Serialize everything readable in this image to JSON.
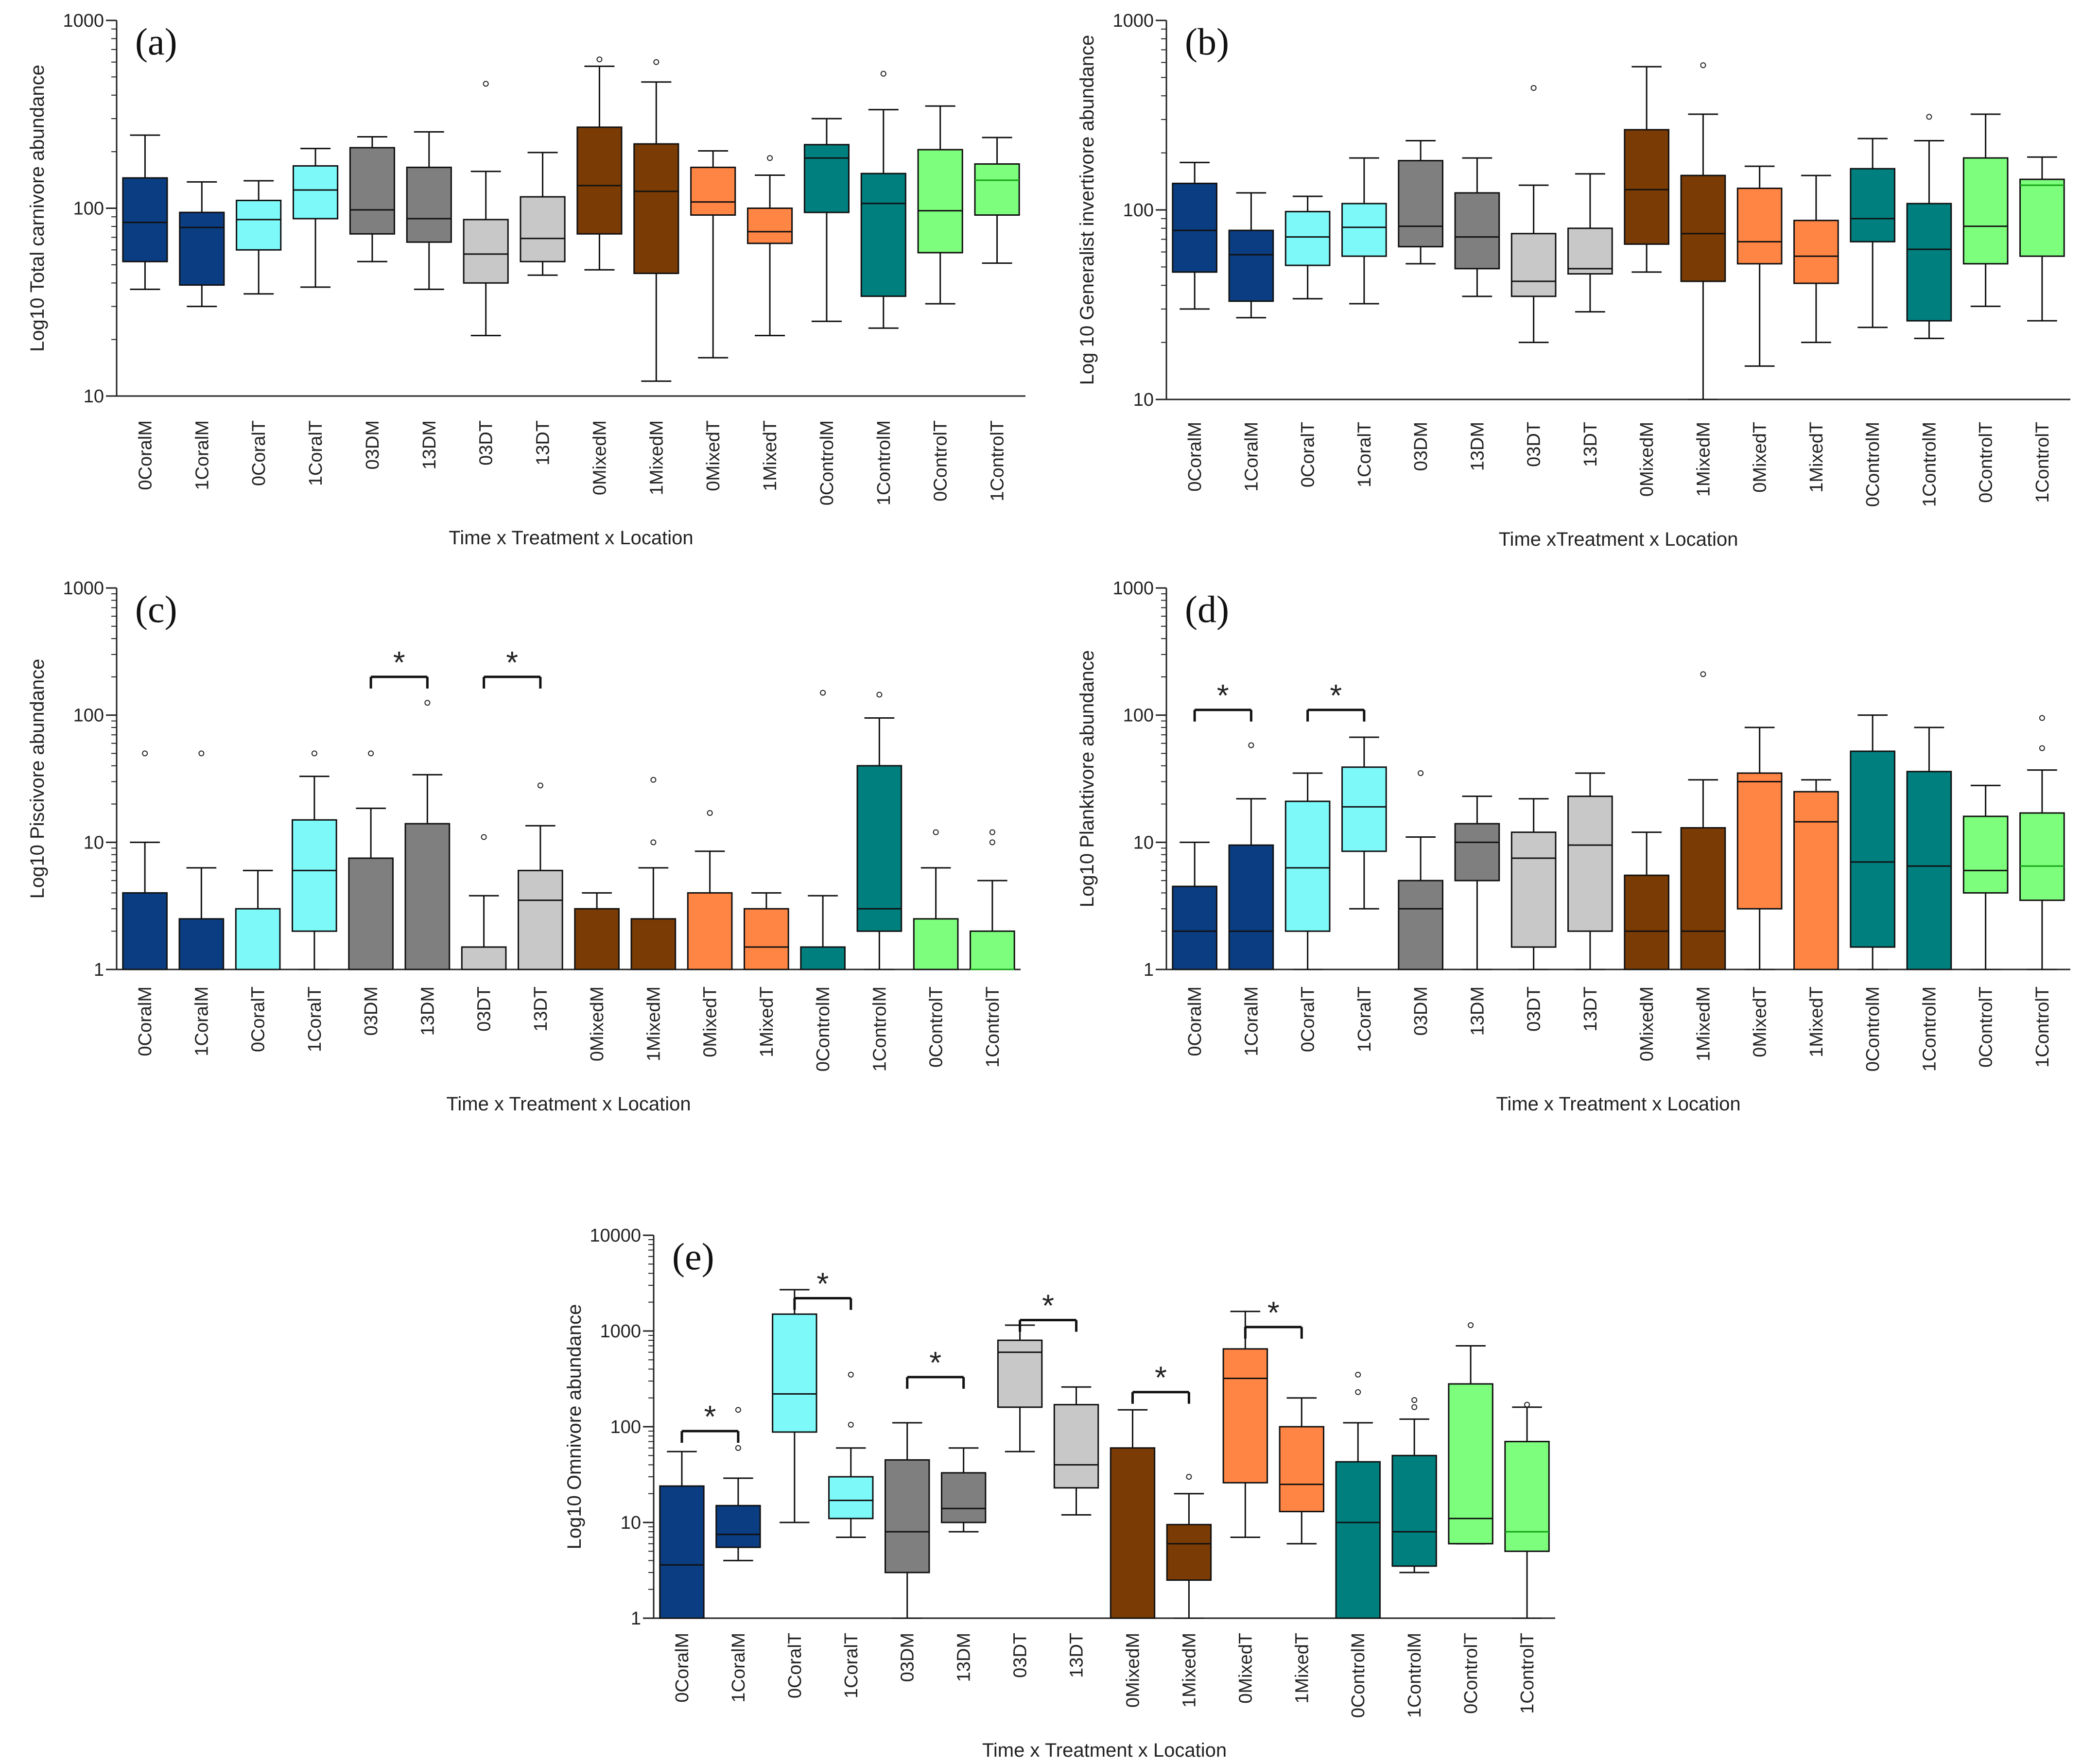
{
  "figure": {
    "categories": [
      "0CoralM",
      "1CoralM",
      "0CoralT",
      "1CoralT",
      "03DM",
      "13DM",
      "03DT",
      "13DT",
      "0MixedM",
      "1MixedM",
      "0MixedT",
      "1MixedT",
      "0ControlM",
      "1ControlM",
      "0ControlT",
      "1ControlT"
    ],
    "category_colors": [
      "#0b3d82",
      "#0b3d82",
      "#7df9fa",
      "#7df9fa",
      "#7f7f7f",
      "#7f7f7f",
      "#c8c8c8",
      "#c8c8c8",
      "#7a3b04",
      "#7a3b04",
      "#ff8544",
      "#ff8544",
      "#007f7f",
      "#007f7f",
      "#7dff7d",
      "#7dff7d"
    ],
    "median_colors": [
      "#111111",
      "#111111",
      "#111111",
      "#111111",
      "#111111",
      "#111111",
      "#111111",
      "#111111",
      "#111111",
      "#111111",
      "#111111",
      "#111111",
      "#111111",
      "#111111",
      "#111111",
      "#16a316"
    ]
  },
  "chart_data": [
    {
      "id": "a",
      "panel_label": "(a)",
      "type": "box",
      "ylabel": "Log10 Total carnivore abundance",
      "xlabel": "Time x Treatment x Location",
      "yscale": "log",
      "ylim": [
        10,
        1000
      ],
      "yticks": [
        {
          "v": 10,
          "label": "10"
        },
        {
          "v": 100,
          "label": "100"
        },
        {
          "v": 1000,
          "label": "1000"
        }
      ],
      "boxes": [
        {
          "min": 37,
          "q1": 52,
          "med": 84,
          "q3": 145,
          "max": 245,
          "out": []
        },
        {
          "min": 30,
          "q1": 39,
          "med": 79,
          "q3": 95,
          "max": 138,
          "out": []
        },
        {
          "min": 35,
          "q1": 60,
          "med": 87,
          "q3": 110,
          "max": 140,
          "out": []
        },
        {
          "min": 38,
          "q1": 88,
          "med": 125,
          "q3": 168,
          "max": 208,
          "out": []
        },
        {
          "min": 52,
          "q1": 73,
          "med": 98,
          "q3": 210,
          "max": 240,
          "out": []
        },
        {
          "min": 37,
          "q1": 66,
          "med": 88,
          "q3": 165,
          "max": 255,
          "out": []
        },
        {
          "min": 21,
          "q1": 40,
          "med": 57,
          "q3": 87,
          "max": 157,
          "out": [
            460
          ]
        },
        {
          "min": 44,
          "q1": 52,
          "med": 69,
          "q3": 115,
          "max": 198,
          "out": []
        },
        {
          "min": 47,
          "q1": 73,
          "med": 132,
          "q3": 270,
          "max": 570,
          "out": [
            620
          ]
        },
        {
          "min": 12,
          "q1": 45,
          "med": 123,
          "q3": 220,
          "max": 470,
          "out": [
            600
          ]
        },
        {
          "min": 16,
          "q1": 92,
          "med": 108,
          "q3": 165,
          "max": 202,
          "out": []
        },
        {
          "min": 21,
          "q1": 65,
          "med": 75,
          "q3": 100,
          "max": 150,
          "out": [
            185
          ]
        },
        {
          "min": 25,
          "q1": 95,
          "med": 185,
          "q3": 218,
          "max": 300,
          "out": []
        },
        {
          "min": 23,
          "q1": 34,
          "med": 106,
          "q3": 153,
          "max": 335,
          "out": [
            520
          ]
        },
        {
          "min": 31,
          "q1": 58,
          "med": 97,
          "q3": 205,
          "max": 350,
          "out": []
        },
        {
          "min": 51,
          "q1": 92,
          "med": 141,
          "q3": 172,
          "max": 238,
          "out": []
        }
      ],
      "significance": []
    },
    {
      "id": "b",
      "panel_label": "(b)",
      "type": "box",
      "ylabel": "Log 10 Generalist invertivore abundance",
      "xlabel": "Time xTreatment x Location",
      "yscale": "log",
      "ylim": [
        10,
        1000
      ],
      "yticks": [
        {
          "v": 10,
          "label": "10"
        },
        {
          "v": 100,
          "label": "100"
        },
        {
          "v": 1000,
          "label": "1000"
        }
      ],
      "boxes": [
        {
          "min": 30,
          "q1": 47,
          "med": 78,
          "q3": 138,
          "max": 178,
          "out": []
        },
        {
          "min": 27,
          "q1": 33,
          "med": 58,
          "q3": 78,
          "max": 123,
          "out": []
        },
        {
          "min": 34,
          "q1": 51,
          "med": 72,
          "q3": 98,
          "max": 118,
          "out": []
        },
        {
          "min": 32,
          "q1": 57,
          "med": 81,
          "q3": 108,
          "max": 188,
          "out": []
        },
        {
          "min": 52,
          "q1": 64,
          "med": 82,
          "q3": 182,
          "max": 232,
          "out": []
        },
        {
          "min": 35,
          "q1": 49,
          "med": 72,
          "q3": 123,
          "max": 188,
          "out": []
        },
        {
          "min": 20,
          "q1": 35,
          "med": 42,
          "q3": 75,
          "max": 135,
          "out": [
            440
          ]
        },
        {
          "min": 29,
          "q1": 46,
          "med": 49,
          "q3": 80,
          "max": 155,
          "out": []
        },
        {
          "min": 47,
          "q1": 66,
          "med": 128,
          "q3": 265,
          "max": 570,
          "out": []
        },
        {
          "min": 10,
          "q1": 42,
          "med": 75,
          "q3": 152,
          "max": 320,
          "out": [
            580
          ]
        },
        {
          "min": 15,
          "q1": 52,
          "med": 68,
          "q3": 130,
          "max": 170,
          "out": []
        },
        {
          "min": 20,
          "q1": 41,
          "med": 57,
          "q3": 88,
          "max": 152,
          "out": []
        },
        {
          "min": 24,
          "q1": 68,
          "med": 90,
          "q3": 165,
          "max": 238,
          "out": []
        },
        {
          "min": 21,
          "q1": 26,
          "med": 62,
          "q3": 108,
          "max": 232,
          "out": [
            310
          ]
        },
        {
          "min": 31,
          "q1": 52,
          "med": 82,
          "q3": 188,
          "max": 320,
          "out": []
        },
        {
          "min": 26,
          "q1": 57,
          "med": 135,
          "q3": 145,
          "max": 190,
          "out": []
        }
      ],
      "significance": []
    },
    {
      "id": "c",
      "panel_label": "(c)",
      "type": "box",
      "ylabel": "Log10 Piscivore abundance",
      "xlabel": "Time x Treatment x Location",
      "yscale": "log",
      "ylim": [
        1,
        1000
      ],
      "yticks": [
        {
          "v": 1,
          "label": "1"
        },
        {
          "v": 10,
          "label": "10"
        },
        {
          "v": 100,
          "label": "100"
        },
        {
          "v": 1000,
          "label": "1000"
        }
      ],
      "boxes": [
        {
          "min": 1,
          "q1": 1,
          "med": 1,
          "q3": 4,
          "max": 10,
          "out": [
            50
          ]
        },
        {
          "min": 1,
          "q1": 1,
          "med": 1,
          "q3": 2.5,
          "max": 6.3,
          "out": [
            50
          ]
        },
        {
          "min": 1,
          "q1": 1,
          "med": 1,
          "q3": 3,
          "max": 6,
          "out": []
        },
        {
          "min": 1,
          "q1": 2,
          "med": 6,
          "q3": 15,
          "max": 33,
          "out": [
            50
          ]
        },
        {
          "min": 1,
          "q1": 1,
          "med": 1,
          "q3": 7.5,
          "max": 18.5,
          "out": [
            50
          ]
        },
        {
          "min": 1,
          "q1": 1,
          "med": 1,
          "q3": 14,
          "max": 34,
          "out": [
            125
          ]
        },
        {
          "min": 1,
          "q1": 1,
          "med": 1,
          "q3": 1.5,
          "max": 3.8,
          "out": [
            11
          ]
        },
        {
          "min": 1,
          "q1": 1,
          "med": 3.5,
          "q3": 6,
          "max": 13.5,
          "out": [
            28
          ]
        },
        {
          "min": 1,
          "q1": 1,
          "med": 1,
          "q3": 3,
          "max": 4,
          "out": []
        },
        {
          "min": 1,
          "q1": 1,
          "med": 1,
          "q3": 2.5,
          "max": 6.3,
          "out": [
            10,
            31
          ]
        },
        {
          "min": 1,
          "q1": 1,
          "med": 1,
          "q3": 4,
          "max": 8.5,
          "out": [
            17
          ]
        },
        {
          "min": 1,
          "q1": 1,
          "med": 1.5,
          "q3": 3,
          "max": 4,
          "out": []
        },
        {
          "min": 1,
          "q1": 1,
          "med": 1,
          "q3": 1.5,
          "max": 3.8,
          "out": [
            150
          ]
        },
        {
          "min": 1,
          "q1": 2,
          "med": 3,
          "q3": 40,
          "max": 95,
          "out": [
            145
          ]
        },
        {
          "min": 1,
          "q1": 1,
          "med": 1,
          "q3": 2.5,
          "max": 6.3,
          "out": [
            12
          ]
        },
        {
          "min": 1,
          "q1": 1,
          "med": 1,
          "q3": 2,
          "max": 5,
          "out": [
            10,
            12
          ]
        }
      ],
      "significance": [
        {
          "from": 4,
          "to": 5,
          "y": 200
        },
        {
          "from": 6,
          "to": 7,
          "y": 200
        }
      ]
    },
    {
      "id": "d",
      "panel_label": "(d)",
      "type": "box",
      "ylabel": "Log10 Planktivore abundance",
      "xlabel": "Time x Treatment x Location",
      "yscale": "log",
      "ylim": [
        1,
        1000
      ],
      "yticks": [
        {
          "v": 1,
          "label": "1"
        },
        {
          "v": 10,
          "label": "10"
        },
        {
          "v": 100,
          "label": "100"
        },
        {
          "v": 1000,
          "label": "1000"
        }
      ],
      "boxes": [
        {
          "min": 1,
          "q1": 1,
          "med": 2,
          "q3": 4.5,
          "max": 10,
          "out": []
        },
        {
          "min": 1,
          "q1": 1,
          "med": 2,
          "q3": 9.5,
          "max": 22,
          "out": [
            58
          ]
        },
        {
          "min": 1,
          "q1": 2,
          "med": 6.3,
          "q3": 21,
          "max": 35,
          "out": []
        },
        {
          "min": 3,
          "q1": 8.5,
          "med": 19,
          "q3": 39,
          "max": 67,
          "out": []
        },
        {
          "min": 1,
          "q1": 1,
          "med": 3,
          "q3": 5,
          "max": 11,
          "out": [
            35
          ]
        },
        {
          "min": 1,
          "q1": 5,
          "med": 10,
          "q3": 14,
          "max": 23,
          "out": []
        },
        {
          "min": 1,
          "q1": 1.5,
          "med": 7.5,
          "q3": 12,
          "max": 22,
          "out": []
        },
        {
          "min": 1,
          "q1": 2,
          "med": 9.5,
          "q3": 23,
          "max": 35,
          "out": []
        },
        {
          "min": 1,
          "q1": 1,
          "med": 2,
          "q3": 5.5,
          "max": 12,
          "out": []
        },
        {
          "min": 1,
          "q1": 1,
          "med": 2,
          "q3": 13,
          "max": 31,
          "out": [
            210
          ]
        },
        {
          "min": 1,
          "q1": 3,
          "med": 30,
          "q3": 35,
          "max": 80,
          "out": []
        },
        {
          "min": 1,
          "q1": 1,
          "med": 14.5,
          "q3": 25,
          "max": 31,
          "out": []
        },
        {
          "min": 1,
          "q1": 1.5,
          "med": 7,
          "q3": 52,
          "max": 100,
          "out": []
        },
        {
          "min": 1,
          "q1": 1,
          "med": 6.5,
          "q3": 36,
          "max": 80,
          "out": []
        },
        {
          "min": 1,
          "q1": 4,
          "med": 6,
          "q3": 16,
          "max": 28,
          "out": []
        },
        {
          "min": 1,
          "q1": 3.5,
          "med": 6.5,
          "q3": 17,
          "max": 37,
          "out": [
            55,
            95
          ]
        }
      ],
      "significance": [
        {
          "from": 0,
          "to": 1,
          "y": 110
        },
        {
          "from": 2,
          "to": 3,
          "y": 110
        }
      ]
    },
    {
      "id": "e",
      "panel_label": "(e)",
      "type": "box",
      "ylabel": "Log10 Omnivore abundance",
      "xlabel": "Time x Treatment x Location",
      "yscale": "log",
      "ylim": [
        1,
        10000
      ],
      "yticks": [
        {
          "v": 1,
          "label": "1"
        },
        {
          "v": 10,
          "label": "10"
        },
        {
          "v": 100,
          "label": "100"
        },
        {
          "v": 1000,
          "label": "1000"
        },
        {
          "v": 10000,
          "label": "10000"
        }
      ],
      "boxes": [
        {
          "min": 1,
          "q1": 1,
          "med": 3.6,
          "q3": 24,
          "max": 55,
          "out": []
        },
        {
          "min": 4,
          "q1": 5.5,
          "med": 7.5,
          "q3": 15,
          "max": 29,
          "out": [
            60,
            150
          ]
        },
        {
          "min": 10,
          "q1": 88,
          "med": 220,
          "q3": 1500,
          "max": 2700,
          "out": []
        },
        {
          "min": 7,
          "q1": 11,
          "med": 17,
          "q3": 30,
          "max": 60,
          "out": [
            105,
            350
          ]
        },
        {
          "min": 1,
          "q1": 3,
          "med": 8,
          "q3": 45,
          "max": 110,
          "out": []
        },
        {
          "min": 8,
          "q1": 10,
          "med": 14,
          "q3": 33,
          "max": 60,
          "out": []
        },
        {
          "min": 55,
          "q1": 160,
          "med": 600,
          "q3": 800,
          "max": 1150,
          "out": []
        },
        {
          "min": 12,
          "q1": 23,
          "med": 40,
          "q3": 170,
          "max": 260,
          "out": []
        },
        {
          "min": 1,
          "q1": 1,
          "med": 1,
          "q3": 60,
          "max": 150,
          "out": []
        },
        {
          "min": 1,
          "q1": 2.5,
          "med": 6,
          "q3": 9.5,
          "max": 20,
          "out": [
            30
          ]
        },
        {
          "min": 7,
          "q1": 26,
          "med": 320,
          "q3": 650,
          "max": 1600,
          "out": []
        },
        {
          "min": 6,
          "q1": 13,
          "med": 25,
          "q3": 100,
          "max": 200,
          "out": []
        },
        {
          "min": 1,
          "q1": 1,
          "med": 10,
          "q3": 43,
          "max": 110,
          "out": [
            230,
            350
          ]
        },
        {
          "min": 3,
          "q1": 3.5,
          "med": 8,
          "q3": 50,
          "max": 120,
          "out": [
            160,
            190
          ]
        },
        {
          "min": 6,
          "q1": 6,
          "med": 11,
          "q3": 280,
          "max": 700,
          "out": [
            1150
          ]
        },
        {
          "min": 1,
          "q1": 5,
          "med": 8,
          "q3": 70,
          "max": 160,
          "out": [
            170
          ]
        }
      ],
      "significance": [
        {
          "from": 0,
          "to": 1,
          "y": 90
        },
        {
          "from": 2,
          "to": 3,
          "y": 2200
        },
        {
          "from": 4,
          "to": 5,
          "y": 330
        },
        {
          "from": 6,
          "to": 7,
          "y": 1300
        },
        {
          "from": 8,
          "to": 9,
          "y": 230
        },
        {
          "from": 10,
          "to": 11,
          "y": 1100
        }
      ]
    }
  ]
}
